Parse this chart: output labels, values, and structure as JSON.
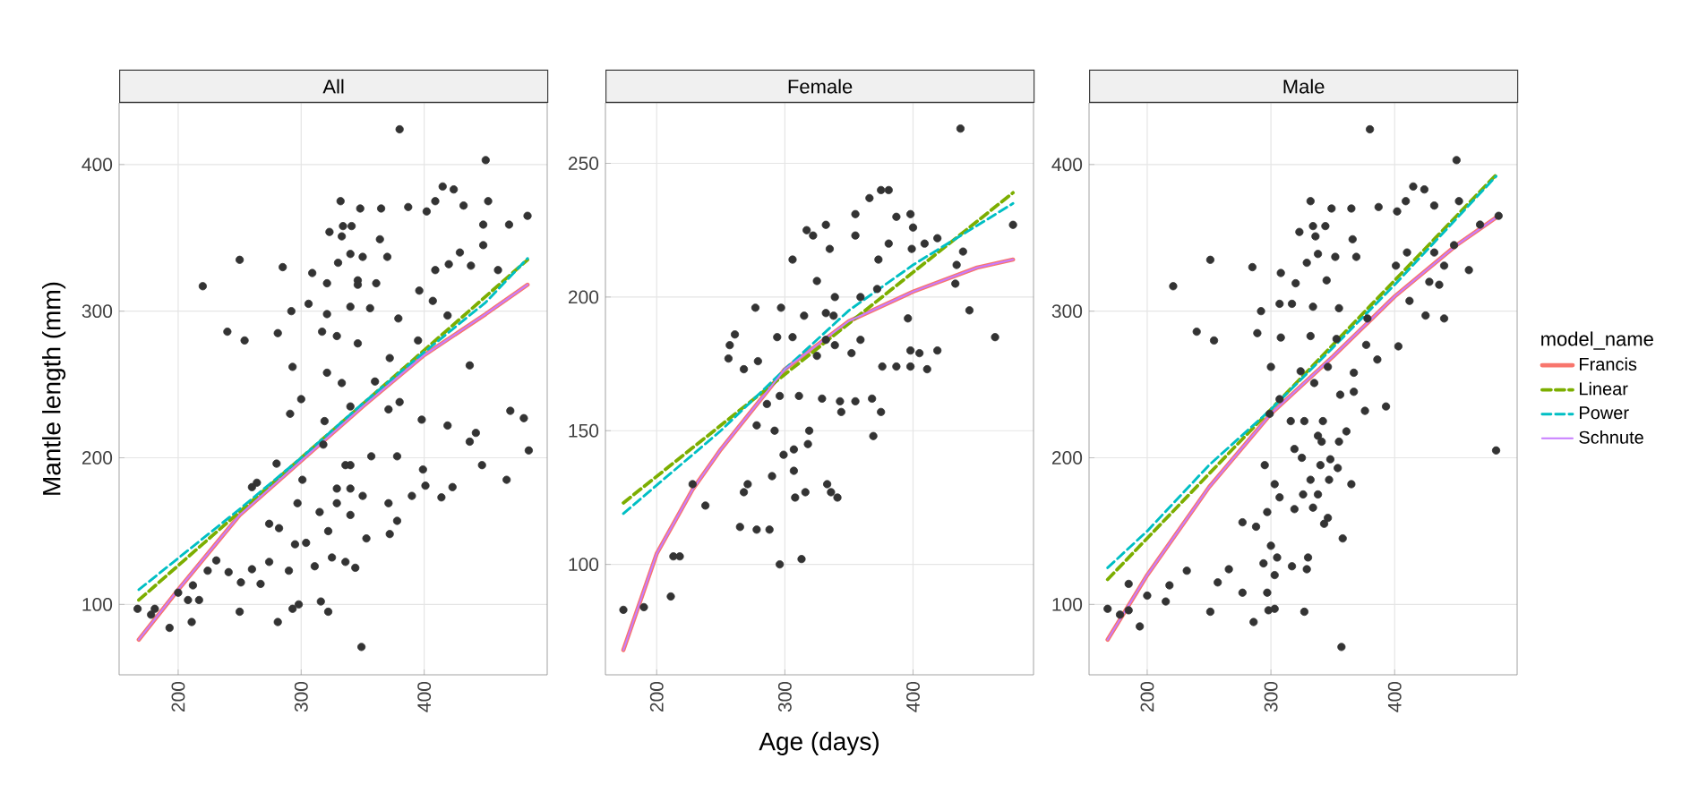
{
  "chart_data": [
    {
      "type": "scatter",
      "title": "All",
      "ylabel": "Mantle length (mm)",
      "xlim": [
        152,
        500
      ],
      "ylim": [
        52,
        442
      ],
      "xticks": [
        200,
        300,
        400
      ],
      "yticks": [
        100,
        200,
        300,
        400
      ],
      "grid": true,
      "series": [
        {
          "color": "#333333",
          "marker": "circle",
          "x": [
            380,
            450,
            415,
            424,
            332,
            484,
            469,
            387,
            402,
            409,
            432,
            452,
            448,
            250,
            285,
            220,
            240,
            254,
            348,
            365,
            334,
            323,
            341,
            333,
            448,
            460,
            429,
            420,
            438,
            409,
            364,
            309,
            330,
            340,
            350,
            370,
            321,
            346,
            361,
            292,
            306,
            321,
            340,
            356,
            379,
            396,
            407,
            419,
            437,
            281,
            293,
            329,
            346,
            372,
            395,
            333,
            321,
            360,
            300,
            291,
            319,
            340,
            371,
            380,
            398,
            419,
            470,
            481,
            485,
            437,
            442,
            447,
            467,
            399,
            414,
            423,
            401,
            390,
            280,
            301,
            318,
            340,
            357,
            378,
            329,
            350,
            371,
            297,
            315,
            340,
            264,
            260,
            274,
            282,
            378,
            372,
            353,
            295,
            304,
            322,
            274,
            231,
            224,
            241,
            260,
            251,
            267,
            290,
            311,
            325,
            336,
            344,
            212,
            200,
            208,
            217,
            211,
            167,
            181,
            178,
            193,
            250,
            281,
            293,
            298,
            316,
            322,
            349,
            336,
            340,
            329,
            346,
            317
          ],
          "values": [
            424,
            403,
            385,
            383,
            375,
            365,
            359,
            371,
            368,
            375,
            372,
            375,
            359,
            335,
            330,
            317,
            286,
            280,
            370,
            370,
            358,
            354,
            358,
            351,
            345,
            328,
            340,
            332,
            331,
            328,
            349,
            326,
            333,
            339,
            337,
            337,
            319,
            321,
            319,
            300,
            305,
            298,
            303,
            302,
            295,
            314,
            307,
            297,
            263,
            285,
            262,
            283,
            278,
            268,
            280,
            251,
            258,
            252,
            240,
            230,
            225,
            235,
            233,
            238,
            226,
            222,
            232,
            227,
            205,
            211,
            217,
            195,
            185,
            192,
            173,
            180,
            181,
            174,
            196,
            185,
            209,
            195,
            201,
            201,
            179,
            174,
            169,
            169,
            163,
            161,
            183,
            180,
            155,
            152,
            157,
            148,
            145,
            141,
            142,
            150,
            129,
            130,
            123,
            122,
            124,
            115,
            114,
            123,
            126,
            132,
            129,
            125,
            113,
            108,
            103,
            103,
            88,
            97,
            97,
            93,
            84,
            95,
            88,
            97,
            100,
            102,
            95,
            71,
            195,
            179,
            169,
            318,
            286
          ]
        },
        {
          "type": "line",
          "color": "#f8766d",
          "line_style": "solid",
          "x": [
            168,
            200,
            250,
            300,
            350,
            400,
            450,
            484
          ],
          "values": [
            76,
            110,
            161,
            198,
            235,
            270,
            298,
            318
          ]
        },
        {
          "type": "line",
          "color": "#7cae00",
          "line_style": "dashed",
          "x": [
            168,
            484
          ],
          "values": [
            103,
            335
          ]
        },
        {
          "type": "line",
          "color": "#00bfc4",
          "line_style": "dashed",
          "x": [
            168,
            250,
            300,
            350,
            400,
            450,
            484
          ],
          "values": [
            110,
            165,
            200,
            237,
            272,
            306,
            336
          ]
        },
        {
          "type": "line",
          "color": "#c77cff",
          "line_style": "solid",
          "x": [
            168,
            200,
            250,
            300,
            350,
            400,
            450,
            484
          ],
          "values": [
            76,
            110,
            161,
            198,
            235,
            270,
            298,
            318
          ]
        }
      ]
    },
    {
      "type": "scatter",
      "title": "Female",
      "xlabel": "Age (days)",
      "xlim": [
        160,
        494
      ],
      "ylim": [
        58.7,
        272.6
      ],
      "xticks": [
        200,
        300,
        400
      ],
      "yticks": [
        100,
        150,
        200,
        250
      ],
      "grid": true,
      "series": [
        {
          "color": "#333333",
          "marker": "circle",
          "x": [
            437,
            375,
            381,
            366,
            355,
            387,
            398,
            478,
            332,
            317,
            322,
            355,
            400,
            419,
            381,
            409,
            399,
            306,
            335,
            373,
            439,
            434,
            433,
            444,
            464,
            396,
            398,
            405,
            419,
            387,
            398,
            411,
            277,
            297,
            325,
            339,
            332,
            315,
            359,
            372,
            261,
            257,
            256,
            268,
            279,
            294,
            306,
            325,
            339,
            359,
            376,
            286,
            296,
            311,
            329,
            343,
            355,
            368,
            344,
            375,
            369,
            278,
            292,
            319,
            318,
            307,
            299,
            290,
            307,
            271,
            268,
            228,
            238,
            316,
            308,
            333,
            336,
            341,
            265,
            278,
            288,
            296,
            313,
            213,
            218,
            211,
            174,
            190,
            338,
            332,
            352
          ],
          "values": [
            263,
            240,
            240,
            237,
            231,
            230,
            231,
            227,
            227,
            225,
            223,
            223,
            226,
            222,
            220,
            220,
            218,
            214,
            218,
            214,
            217,
            212,
            205,
            195,
            185,
            192,
            180,
            179,
            180,
            174,
            174,
            173,
            196,
            196,
            206,
            200,
            194,
            193,
            200,
            203,
            186,
            182,
            177,
            173,
            176,
            185,
            185,
            178,
            182,
            184,
            174,
            160,
            163,
            163,
            162,
            161,
            161,
            162,
            157,
            157,
            148,
            152,
            150,
            150,
            145,
            143,
            141,
            133,
            135,
            130,
            127,
            130,
            122,
            127,
            125,
            130,
            127,
            125,
            114,
            113,
            113,
            100,
            102,
            103,
            103,
            88,
            83,
            84,
            193,
            184,
            179
          ]
        },
        {
          "type": "line",
          "color": "#f8766d",
          "line_style": "solid",
          "x": [
            174,
            200,
            228,
            250,
            300,
            350,
            400,
            450,
            478
          ],
          "values": [
            68,
            104,
            128,
            143,
            173,
            191,
            202,
            211,
            214
          ]
        },
        {
          "type": "line",
          "color": "#7cae00",
          "line_style": "dashed",
          "x": [
            174,
            478
          ],
          "values": [
            123,
            239
          ]
        },
        {
          "type": "line",
          "color": "#00bfc4",
          "line_style": "dashed",
          "x": [
            174,
            250,
            300,
            350,
            400,
            478
          ],
          "values": [
            119,
            150,
            173,
            195,
            212,
            235
          ]
        },
        {
          "type": "line",
          "color": "#c77cff",
          "line_style": "solid",
          "x": [
            174,
            200,
            228,
            250,
            300,
            350,
            400,
            450,
            478
          ],
          "values": [
            68,
            104,
            128,
            143,
            173,
            191,
            202,
            211,
            214
          ]
        }
      ]
    },
    {
      "type": "scatter",
      "title": "Male",
      "legend": "right",
      "legend_title": "model_name",
      "xlim": [
        153,
        499
      ],
      "ylim": [
        52,
        442
      ],
      "xticks": [
        200,
        300,
        400
      ],
      "yticks": [
        100,
        200,
        300,
        400
      ],
      "grid": true,
      "series": [
        {
          "color": "#333333",
          "marker": "circle",
          "x": [
            380,
            450,
            415,
            424,
            332,
            349,
            365,
            387,
            402,
            409,
            432,
            452,
            484,
            469,
            448,
            460,
            432,
            440,
            428,
            436,
            410,
            401,
            251,
            285,
            221,
            240,
            254,
            334,
            323,
            344,
            336,
            366,
            308,
            329,
            338,
            352,
            369,
            320,
            345,
            292,
            307,
            317,
            334,
            355,
            378,
            425,
            440,
            412,
            289,
            308,
            332,
            353,
            377,
            403,
            300,
            324,
            346,
            367,
            386,
            335,
            356,
            367,
            307,
            299,
            316,
            327,
            342,
            376,
            393,
            338,
            361,
            341,
            355,
            319,
            325,
            295,
            340,
            348,
            354,
            332,
            347,
            303,
            365,
            307,
            326,
            338,
            319,
            334,
            297,
            346,
            343,
            277,
            288,
            358,
            300,
            305,
            330,
            317,
            329,
            294,
            303,
            232,
            266,
            257,
            277,
            297,
            218,
            200,
            215,
            185,
            168,
            178,
            185,
            194,
            251,
            286,
            298,
            303,
            327,
            357,
            482
          ],
          "values": [
            424,
            403,
            385,
            383,
            375,
            370,
            370,
            371,
            368,
            375,
            372,
            375,
            365,
            359,
            345,
            328,
            340,
            331,
            320,
            318,
            340,
            331,
            335,
            330,
            317,
            286,
            280,
            358,
            354,
            358,
            351,
            349,
            326,
            333,
            339,
            337,
            337,
            319,
            321,
            300,
            305,
            305,
            303,
            302,
            295,
            297,
            295,
            307,
            285,
            282,
            283,
            281,
            277,
            276,
            262,
            259,
            262,
            258,
            267,
            251,
            243,
            245,
            240,
            230,
            225,
            225,
            225,
            232,
            235,
            215,
            218,
            211,
            211,
            206,
            200,
            195,
            195,
            199,
            193,
            185,
            185,
            182,
            182,
            173,
            175,
            175,
            165,
            166,
            163,
            159,
            155,
            156,
            153,
            145,
            140,
            132,
            132,
            126,
            124,
            128,
            120,
            123,
            124,
            115,
            108,
            108,
            113,
            106,
            102,
            114,
            97,
            93,
            96,
            85,
            95,
            88,
            96,
            97,
            95,
            71,
            205
          ]
        },
        {
          "type": "line",
          "name": "Francis",
          "color": "#f8766d",
          "line_style": "solid",
          "x": [
            168,
            200,
            250,
            300,
            350,
            400,
            450,
            484
          ],
          "values": [
            76,
            120,
            180,
            230,
            269,
            310,
            345,
            365
          ]
        },
        {
          "type": "line",
          "name": "Linear",
          "color": "#7cae00",
          "line_style": "dashed",
          "x": [
            168,
            482
          ],
          "values": [
            117,
            393
          ]
        },
        {
          "type": "line",
          "name": "Power",
          "color": "#00bfc4",
          "line_style": "dashed",
          "x": [
            168,
            200,
            250,
            300,
            350,
            400,
            482
          ],
          "values": [
            125,
            150,
            195,
            233,
            275,
            318,
            392
          ]
        },
        {
          "type": "line",
          "name": "Schnute",
          "color": "#c77cff",
          "line_style": "solid",
          "x": [
            168,
            200,
            250,
            300,
            350,
            400,
            450,
            484
          ],
          "values": [
            76,
            120,
            180,
            230,
            269,
            310,
            345,
            365
          ]
        }
      ]
    }
  ]
}
